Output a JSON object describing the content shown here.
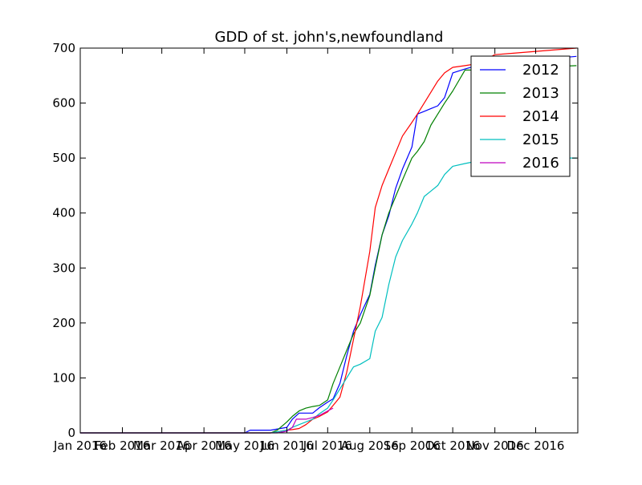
{
  "chart_data": {
    "type": "line",
    "title": "GDD of st. john's,newfoundland",
    "xlabel": "",
    "ylabel": "",
    "xlim": [
      "2016-01-01",
      "2016-12-31"
    ],
    "ylim": [
      0,
      700
    ],
    "yticks": [
      0,
      100,
      200,
      300,
      400,
      500,
      600,
      700
    ],
    "xticks": [
      {
        "date": "2016-01-01",
        "label": "Jan 2016"
      },
      {
        "date": "2016-02-01",
        "label": "Feb 2016"
      },
      {
        "date": "2016-03-01",
        "label": "Mar 2016"
      },
      {
        "date": "2016-04-01",
        "label": "Apr 2016"
      },
      {
        "date": "2016-05-01",
        "label": "May 2016"
      },
      {
        "date": "2016-06-01",
        "label": "Jun 2016"
      },
      {
        "date": "2016-07-01",
        "label": "Jul 2016"
      },
      {
        "date": "2016-08-01",
        "label": "Aug 2016"
      },
      {
        "date": "2016-09-01",
        "label": "Sep 2016"
      },
      {
        "date": "2016-10-01",
        "label": "Oct 2016"
      },
      {
        "date": "2016-11-01",
        "label": "Nov 2016"
      },
      {
        "date": "2016-12-01",
        "label": "Dec 2016"
      }
    ],
    "grid": false,
    "legend_position": "top-right",
    "series": [
      {
        "name": "2012",
        "color": "#0000ff",
        "x": [
          "2016-01-01",
          "2016-05-01",
          "2016-05-05",
          "2016-05-20",
          "2016-06-01",
          "2016-06-05",
          "2016-06-10",
          "2016-06-16",
          "2016-06-20",
          "2016-06-25",
          "2016-07-01",
          "2016-07-05",
          "2016-07-10",
          "2016-07-15",
          "2016-07-20",
          "2016-07-25",
          "2016-08-01",
          "2016-08-05",
          "2016-08-10",
          "2016-08-15",
          "2016-08-20",
          "2016-08-25",
          "2016-09-01",
          "2016-09-05",
          "2016-09-10",
          "2016-09-15",
          "2016-09-20",
          "2016-09-25",
          "2016-10-01",
          "2016-10-10",
          "2016-10-20",
          "2016-11-01",
          "2016-12-31"
        ],
        "y": [
          0,
          0,
          5,
          5,
          10,
          25,
          36,
          36,
          36,
          46,
          56,
          62,
          90,
          140,
          185,
          215,
          252,
          305,
          360,
          395,
          445,
          480,
          520,
          580,
          585,
          590,
          595,
          610,
          655,
          662,
          669,
          672,
          685
        ]
      },
      {
        "name": "2013",
        "color": "#008000",
        "x": [
          "2016-01-01",
          "2016-05-20",
          "2016-05-25",
          "2016-06-01",
          "2016-06-05",
          "2016-06-10",
          "2016-06-15",
          "2016-06-20",
          "2016-06-25",
          "2016-07-01",
          "2016-07-05",
          "2016-07-10",
          "2016-07-15",
          "2016-07-20",
          "2016-07-25",
          "2016-08-01",
          "2016-08-05",
          "2016-08-10",
          "2016-08-15",
          "2016-08-20",
          "2016-08-25",
          "2016-09-01",
          "2016-09-05",
          "2016-09-10",
          "2016-09-15",
          "2016-09-20",
          "2016-09-25",
          "2016-10-01",
          "2016-10-10",
          "2016-10-20",
          "2016-11-01",
          "2016-12-31"
        ],
        "y": [
          0,
          0,
          5,
          20,
          30,
          40,
          45,
          48,
          50,
          60,
          90,
          120,
          150,
          180,
          200,
          250,
          300,
          360,
          400,
          430,
          460,
          500,
          512,
          530,
          560,
          580,
          600,
          622,
          660,
          660,
          662,
          668
        ]
      },
      {
        "name": "2014",
        "color": "#ff0000",
        "x": [
          "2016-01-01",
          "2016-05-20",
          "2016-05-25",
          "2016-06-01",
          "2016-06-05",
          "2016-06-10",
          "2016-06-15",
          "2016-06-20",
          "2016-06-25",
          "2016-07-01",
          "2016-07-05",
          "2016-07-10",
          "2016-07-15",
          "2016-07-20",
          "2016-07-25",
          "2016-08-01",
          "2016-08-05",
          "2016-08-10",
          "2016-08-15",
          "2016-08-20",
          "2016-08-25",
          "2016-09-01",
          "2016-09-05",
          "2016-09-10",
          "2016-09-15",
          "2016-09-20",
          "2016-09-25",
          "2016-10-01",
          "2016-10-10",
          "2016-10-20",
          "2016-11-01",
          "2016-12-31"
        ],
        "y": [
          0,
          0,
          2,
          5,
          6,
          8,
          15,
          25,
          30,
          38,
          50,
          65,
          110,
          170,
          230,
          330,
          410,
          450,
          480,
          510,
          540,
          565,
          580,
          600,
          620,
          640,
          655,
          665,
          668,
          672,
          688,
          700
        ]
      },
      {
        "name": "2015",
        "color": "#00bfbf",
        "x": [
          "2016-01-01",
          "2016-05-20",
          "2016-06-01",
          "2016-06-05",
          "2016-06-10",
          "2016-06-20",
          "2016-06-25",
          "2016-07-01",
          "2016-07-05",
          "2016-07-10",
          "2016-07-15",
          "2016-07-20",
          "2016-07-25",
          "2016-08-01",
          "2016-08-05",
          "2016-08-10",
          "2016-08-15",
          "2016-08-20",
          "2016-08-25",
          "2016-09-01",
          "2016-09-05",
          "2016-09-10",
          "2016-09-15",
          "2016-09-20",
          "2016-09-25",
          "2016-10-01",
          "2016-10-10",
          "2016-10-20",
          "2016-11-01",
          "2016-12-31"
        ],
        "y": [
          0,
          0,
          5,
          10,
          15,
          25,
          35,
          45,
          60,
          80,
          100,
          120,
          125,
          135,
          185,
          210,
          270,
          320,
          350,
          380,
          400,
          430,
          440,
          450,
          470,
          485,
          490,
          495,
          500,
          500
        ]
      },
      {
        "name": "2016",
        "color": "#bf00bf",
        "x": [
          "2016-01-01",
          "2016-05-25",
          "2016-06-01",
          "2016-06-05",
          "2016-06-08",
          "2016-06-15",
          "2016-06-20",
          "2016-06-25",
          "2016-07-01",
          "2016-07-05"
        ],
        "y": [
          0,
          0,
          3,
          10,
          25,
          25,
          28,
          32,
          40,
          45
        ]
      }
    ]
  }
}
